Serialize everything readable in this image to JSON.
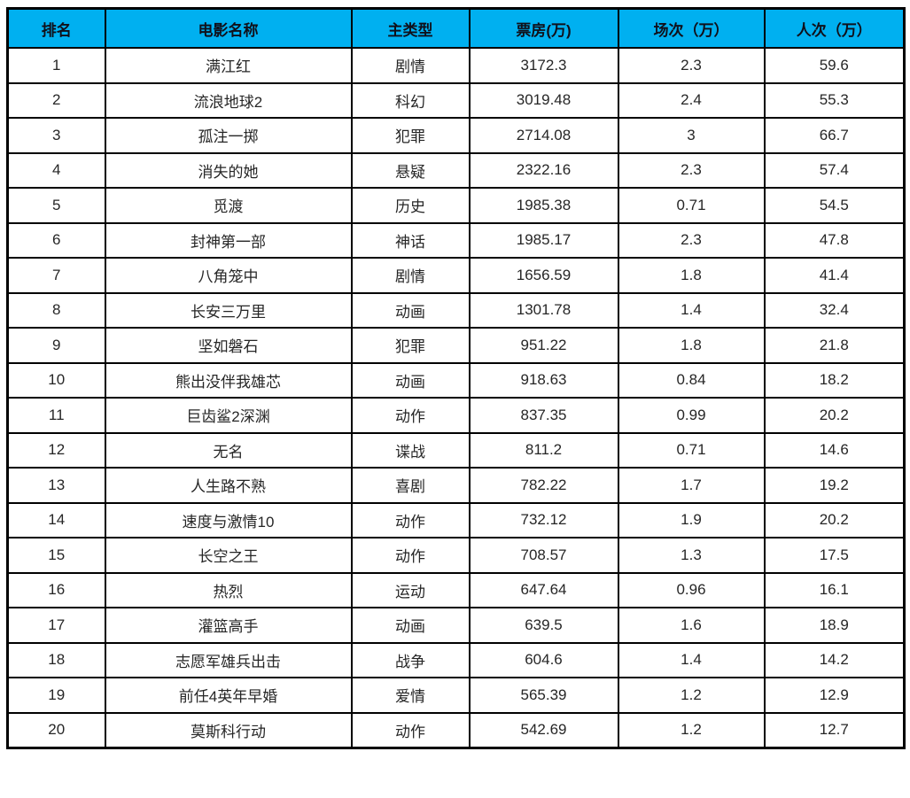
{
  "colors": {
    "header_bg": "#00b0f0",
    "header_text": "#10101a",
    "body_text": "#262626",
    "border": "#000000",
    "row_bg": "#ffffff"
  },
  "table": {
    "columns": [
      {
        "key": "rank",
        "label": "排名"
      },
      {
        "key": "name",
        "label": "电影名称"
      },
      {
        "key": "genre",
        "label": "主类型"
      },
      {
        "key": "box_office",
        "label": "票房(万)"
      },
      {
        "key": "sessions",
        "label": "场次（万）"
      },
      {
        "key": "admissions",
        "label": "人次（万）"
      }
    ],
    "rows": [
      {
        "rank": "1",
        "name": "满江红",
        "genre": "剧情",
        "box_office": "3172.3",
        "sessions": "2.3",
        "admissions": "59.6"
      },
      {
        "rank": "2",
        "name": "流浪地球2",
        "genre": "科幻",
        "box_office": "3019.48",
        "sessions": "2.4",
        "admissions": "55.3"
      },
      {
        "rank": "3",
        "name": "孤注一掷",
        "genre": "犯罪",
        "box_office": "2714.08",
        "sessions": "3",
        "admissions": "66.7"
      },
      {
        "rank": "4",
        "name": "消失的她",
        "genre": "悬疑",
        "box_office": "2322.16",
        "sessions": "2.3",
        "admissions": "57.4"
      },
      {
        "rank": "5",
        "name": "觅渡",
        "genre": "历史",
        "box_office": "1985.38",
        "sessions": "0.71",
        "admissions": "54.5"
      },
      {
        "rank": "6",
        "name": "封神第一部",
        "genre": "神话",
        "box_office": "1985.17",
        "sessions": "2.3",
        "admissions": "47.8"
      },
      {
        "rank": "7",
        "name": "八角笼中",
        "genre": "剧情",
        "box_office": "1656.59",
        "sessions": "1.8",
        "admissions": "41.4"
      },
      {
        "rank": "8",
        "name": "长安三万里",
        "genre": "动画",
        "box_office": "1301.78",
        "sessions": "1.4",
        "admissions": "32.4"
      },
      {
        "rank": "9",
        "name": "坚如磐石",
        "genre": "犯罪",
        "box_office": "951.22",
        "sessions": "1.8",
        "admissions": "21.8"
      },
      {
        "rank": "10",
        "name": "熊出没伴我雄芯",
        "genre": "动画",
        "box_office": "918.63",
        "sessions": "0.84",
        "admissions": "18.2"
      },
      {
        "rank": "11",
        "name": "巨齿鲨2深渊",
        "genre": "动作",
        "box_office": "837.35",
        "sessions": "0.99",
        "admissions": "20.2"
      },
      {
        "rank": "12",
        "name": "无名",
        "genre": "谍战",
        "box_office": "811.2",
        "sessions": "0.71",
        "admissions": "14.6"
      },
      {
        "rank": "13",
        "name": "人生路不熟",
        "genre": "喜剧",
        "box_office": "782.22",
        "sessions": "1.7",
        "admissions": "19.2"
      },
      {
        "rank": "14",
        "name": "速度与激情10",
        "genre": "动作",
        "box_office": "732.12",
        "sessions": "1.9",
        "admissions": "20.2"
      },
      {
        "rank": "15",
        "name": "长空之王",
        "genre": "动作",
        "box_office": "708.57",
        "sessions": "1.3",
        "admissions": "17.5"
      },
      {
        "rank": "16",
        "name": "热烈",
        "genre": "运动",
        "box_office": "647.64",
        "sessions": "0.96",
        "admissions": "16.1"
      },
      {
        "rank": "17",
        "name": "灌篮高手",
        "genre": "动画",
        "box_office": "639.5",
        "sessions": "1.6",
        "admissions": "18.9"
      },
      {
        "rank": "18",
        "name": "志愿军雄兵出击",
        "genre": "战争",
        "box_office": "604.6",
        "sessions": "1.4",
        "admissions": "14.2"
      },
      {
        "rank": "19",
        "name": "前任4英年早婚",
        "genre": "爱情",
        "box_office": "565.39",
        "sessions": "1.2",
        "admissions": "12.9"
      },
      {
        "rank": "20",
        "name": "莫斯科行动",
        "genre": "动作",
        "box_office": "542.69",
        "sessions": "1.2",
        "admissions": "12.7"
      }
    ]
  },
  "chart_data": {
    "type": "table",
    "title": "",
    "columns": [
      "排名",
      "电影名称",
      "主类型",
      "票房(万)",
      "场次（万）",
      "人次（万）"
    ],
    "rows": [
      [
        1,
        "满江红",
        "剧情",
        3172.3,
        2.3,
        59.6
      ],
      [
        2,
        "流浪地球2",
        "科幻",
        3019.48,
        2.4,
        55.3
      ],
      [
        3,
        "孤注一掷",
        "犯罪",
        2714.08,
        3,
        66.7
      ],
      [
        4,
        "消失的她",
        "悬疑",
        2322.16,
        2.3,
        57.4
      ],
      [
        5,
        "觅渡",
        "历史",
        1985.38,
        0.71,
        54.5
      ],
      [
        6,
        "封神第一部",
        "神话",
        1985.17,
        2.3,
        47.8
      ],
      [
        7,
        "八角笼中",
        "剧情",
        1656.59,
        1.8,
        41.4
      ],
      [
        8,
        "长安三万里",
        "动画",
        1301.78,
        1.4,
        32.4
      ],
      [
        9,
        "坚如磐石",
        "犯罪",
        951.22,
        1.8,
        21.8
      ],
      [
        10,
        "熊出没伴我雄芯",
        "动画",
        918.63,
        0.84,
        18.2
      ],
      [
        11,
        "巨齿鲨2深渊",
        "动作",
        837.35,
        0.99,
        20.2
      ],
      [
        12,
        "无名",
        "谍战",
        811.2,
        0.71,
        14.6
      ],
      [
        13,
        "人生路不熟",
        "喜剧",
        782.22,
        1.7,
        19.2
      ],
      [
        14,
        "速度与激情10",
        "动作",
        732.12,
        1.9,
        20.2
      ],
      [
        15,
        "长空之王",
        "动作",
        708.57,
        1.3,
        17.5
      ],
      [
        16,
        "热烈",
        "运动",
        647.64,
        0.96,
        16.1
      ],
      [
        17,
        "灌篮高手",
        "动画",
        639.5,
        1.6,
        18.9
      ],
      [
        18,
        "志愿军雄兵出击",
        "战争",
        604.6,
        1.4,
        14.2
      ],
      [
        19,
        "前任4英年早婚",
        "爱情",
        565.39,
        1.2,
        12.9
      ],
      [
        20,
        "莫斯科行动",
        "动作",
        542.69,
        1.2,
        12.7
      ]
    ]
  }
}
